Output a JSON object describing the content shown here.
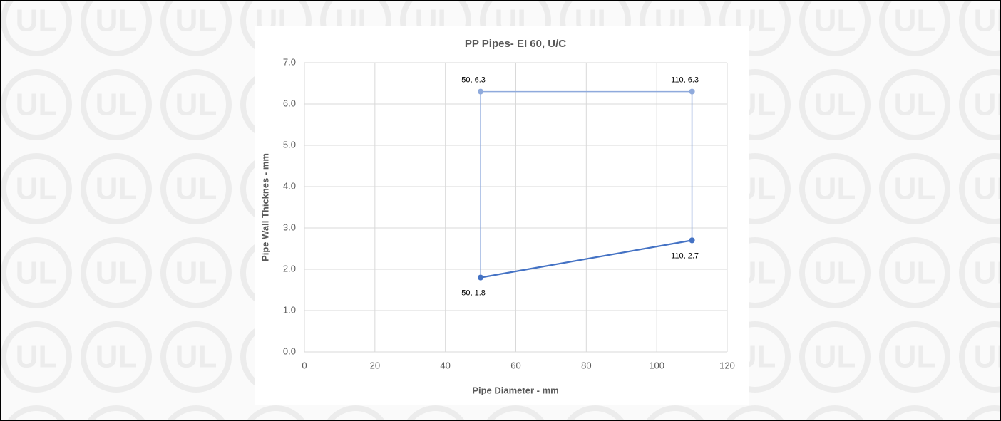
{
  "chart_data": {
    "type": "scatter",
    "title": "PP Pipes- EI 60, U/C",
    "x_label": "Pipe Diameter - mm",
    "y_label": "Pipe Wall Thicknes - mm",
    "xlim": [
      0,
      120
    ],
    "xticks": [
      0,
      20,
      40,
      60,
      80,
      100,
      120
    ],
    "ylim": [
      0,
      7
    ],
    "yticks": [
      {
        "value": 0,
        "label": "0.0"
      },
      {
        "value": 1,
        "label": "1.0"
      },
      {
        "value": 2,
        "label": "2.0"
      },
      {
        "value": 3,
        "label": "3.0"
      },
      {
        "value": 4,
        "label": "4.0"
      },
      {
        "value": 5,
        "label": "5.0"
      },
      {
        "value": 6,
        "label": "6.0"
      },
      {
        "value": 7,
        "label": "7.0"
      }
    ],
    "grid": true,
    "series": [
      {
        "color": "#8faadc",
        "x": [
          50,
          50,
          110,
          110
        ],
        "values": [
          1.8,
          6.3,
          6.3,
          2.7
        ],
        "value_labels": [
          null,
          "50, 6.3",
          "110, 6.3",
          null
        ]
      },
      {
        "color": "#4472c4",
        "x": [
          50,
          110
        ],
        "values": [
          1.8,
          2.7
        ],
        "value_labels": [
          "50, 1.8",
          "110, 2.7"
        ]
      }
    ]
  }
}
